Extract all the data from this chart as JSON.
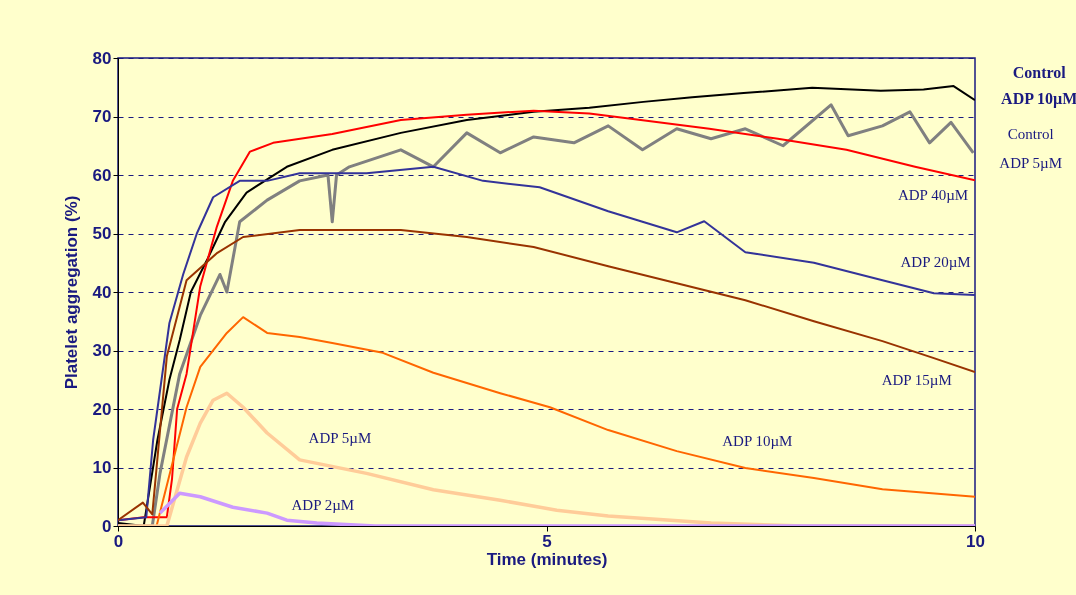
{
  "chart_data": {
    "type": "line",
    "xlabel": "Time (minutes)",
    "ylabel": "Platelet aggregation (%)",
    "xlim": [
      0,
      10
    ],
    "xticks": [
      0,
      5,
      10
    ],
    "ylim": [
      0,
      80
    ],
    "yticks": [
      0,
      10,
      20,
      30,
      40,
      50,
      60,
      70,
      80
    ],
    "grid": "y",
    "line_style": "solid",
    "marker": "none",
    "series": [
      {
        "name": "Control ADP 10µM",
        "color": "#000000",
        "x": [
          0,
          0.3,
          0.46,
          0.6,
          0.72,
          0.85,
          1.04,
          1.25,
          1.5,
          1.97,
          2.5,
          3.3,
          4.07,
          4.85,
          5.5,
          6.13,
          6.7,
          7.3,
          8.1,
          8.9,
          9.4,
          9.75,
          10
        ],
        "values": [
          0.5,
          0,
          14.7,
          25,
          31.8,
          40,
          45.5,
          52,
          57,
          61.4,
          64.3,
          67.2,
          69.4,
          70.8,
          71.5,
          72.5,
          73.3,
          74,
          74.9,
          74.4,
          74.6,
          75.2,
          72.8
        ]
      },
      {
        "name": "Control ADP 5µM",
        "color": "#808080",
        "x": [
          0,
          0.4,
          0.49,
          0.72,
          0.96,
          1.19,
          1.27,
          1.42,
          1.74,
          2.12,
          2.45,
          2.5,
          2.55,
          2.7,
          3.3,
          3.68,
          4.07,
          4.46,
          4.85,
          5.32,
          5.72,
          6.12,
          6.52,
          6.92,
          7.32,
          7.76,
          8.32,
          8.52,
          8.92,
          9.24,
          9.47,
          9.72,
          9.98
        ],
        "values": [
          0,
          0,
          9,
          26,
          36,
          43,
          40,
          52,
          55.7,
          59,
          60,
          52,
          60,
          61.4,
          64.3,
          61.4,
          67.2,
          63.8,
          66.5,
          65.5,
          68.4,
          64.3,
          67.9,
          66.2,
          67.9,
          65,
          72,
          66.7,
          68.4,
          70.8,
          65.5,
          69,
          63.8
        ]
      },
      {
        "name": "ADP 40µM",
        "color": "#ff0000",
        "x": [
          0,
          0.3,
          0.57,
          0.63,
          0.69,
          0.8,
          0.96,
          1.15,
          1.34,
          1.54,
          1.81,
          2.5,
          3.3,
          4.07,
          4.85,
          5.5,
          6.1,
          6.9,
          7.7,
          8.5,
          9.3,
          10
        ],
        "values": [
          1,
          1.5,
          1.5,
          8,
          20,
          26,
          41,
          51,
          59,
          64,
          65.5,
          67,
          69.4,
          70.3,
          71,
          70.5,
          69.4,
          67.9,
          66.2,
          64.3,
          61.4,
          59.1
        ]
      },
      {
        "name": "ADP 20µM",
        "color": "#333399",
        "x": [
          0,
          0.33,
          0.41,
          0.6,
          0.76,
          0.92,
          1.11,
          1.42,
          1.74,
          2.12,
          2.9,
          3.68,
          4.26,
          4.92,
          5.72,
          6.52,
          6.84,
          7.32,
          8.12,
          8.92,
          9.52,
          10
        ],
        "values": [
          1,
          1.5,
          14.7,
          34.7,
          43,
          50,
          56.2,
          59,
          59,
          60.3,
          60.3,
          61.4,
          59,
          57.9,
          53.8,
          50.2,
          52.1,
          46.8,
          45,
          42,
          39.8,
          39.5
        ]
      },
      {
        "name": "ADP 15µM",
        "color": "#993300",
        "x": [
          0,
          0.29,
          0.4,
          0.57,
          0.8,
          1.15,
          1.46,
          2.12,
          2.5,
          3.3,
          4.07,
          4.85,
          5.72,
          6.52,
          7.32,
          8.12,
          8.92,
          9.52,
          10
        ],
        "values": [
          1,
          4,
          2,
          29,
          42,
          46.6,
          49.4,
          50.6,
          50.6,
          50.6,
          49.4,
          47.7,
          44.4,
          41.5,
          38.6,
          35,
          31.6,
          28.7,
          26.3
        ]
      },
      {
        "name": "ADP 10µM",
        "color": "#ff6600",
        "x": [
          0,
          0.45,
          0.8,
          0.96,
          1.27,
          1.46,
          1.74,
          2.12,
          2.5,
          3.09,
          3.68,
          4.46,
          5.04,
          5.72,
          6.52,
          7.32,
          8.12,
          8.92,
          10
        ],
        "values": [
          0,
          0,
          20.3,
          27.2,
          33,
          35.7,
          33,
          32.3,
          31.3,
          29.6,
          26.2,
          22.7,
          20.3,
          16.4,
          12.8,
          9.9,
          8.2,
          6.3,
          5
        ]
      },
      {
        "name": "ADP 5µM",
        "color": "#ffcc99",
        "x": [
          0,
          0.57,
          0.8,
          0.96,
          1.11,
          1.27,
          1.46,
          1.74,
          2.12,
          2.9,
          3.68,
          4.46,
          5.12,
          5.72,
          6.92,
          8,
          10
        ],
        "values": [
          0,
          0,
          11.8,
          17.6,
          21.5,
          22.7,
          20.3,
          15.9,
          11.3,
          9,
          6.2,
          4.4,
          2.7,
          1.7,
          0.5,
          0,
          0
        ]
      },
      {
        "name": "ADP 2µM",
        "color": "#cc99ff",
        "x": [
          0.49,
          0.72,
          0.96,
          1.34,
          1.74,
          1.97,
          2.32,
          3,
          10
        ],
        "values": [
          2.2,
          5.6,
          5,
          3.2,
          2.2,
          1,
          0.5,
          0,
          0
        ]
      }
    ]
  }
}
